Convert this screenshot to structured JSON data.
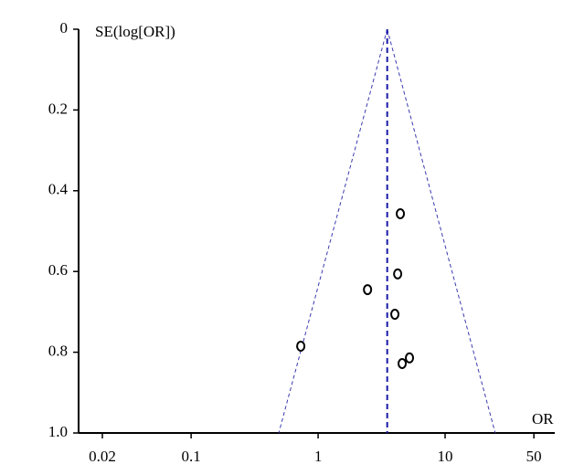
{
  "chart_data": {
    "type": "scatter",
    "x_label": "OR",
    "y_label": "SE(log[OR])",
    "xlog": true,
    "yinvert": true,
    "xlim": [
      0.013,
      73
    ],
    "ylim": [
      0,
      1
    ],
    "xticks": [
      0.02,
      0.1,
      1,
      10,
      50
    ],
    "yticks": [
      0,
      0.2,
      0.4,
      0.6,
      0.8,
      {
        "value": 1,
        "label": "1.0"
      }
    ],
    "x": [
      4.44,
      4.23,
      2.45,
      4.02,
      0.73,
      5.24,
      4.59
    ],
    "y": [
      0.457,
      0.606,
      0.645,
      0.706,
      0.785,
      0.814,
      0.828
    ],
    "color": "#000000",
    "pooled_or": 3.5,
    "pooled_color": "#1a1aa8",
    "funnel": {
      "y": [
        0,
        1
      ],
      "lower": [
        3.5,
        0.49
      ],
      "upper": [
        3.5,
        24.8
      ],
      "color": "#3a3ab0"
    }
  }
}
